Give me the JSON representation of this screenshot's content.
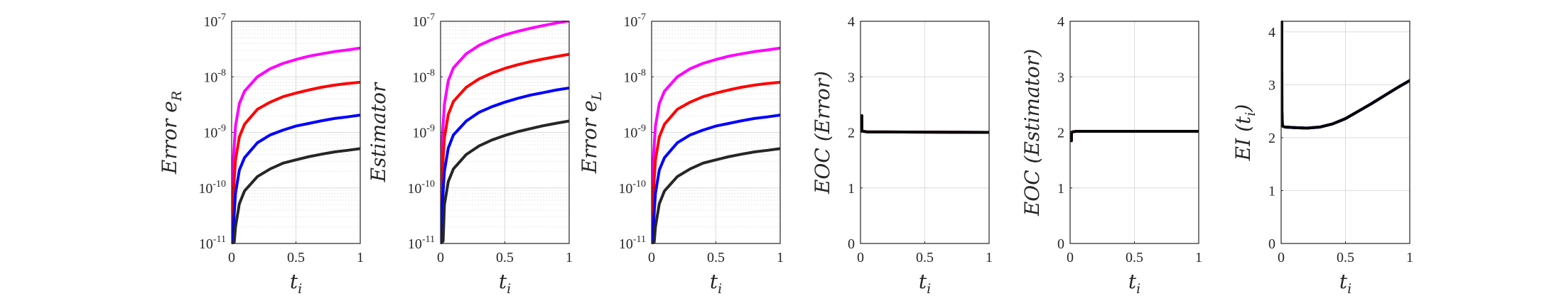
{
  "chart_data": [
    {
      "type": "line",
      "yscale": "log",
      "xlabel": {
        "base": "t",
        "sub": "i"
      },
      "ylabel": {
        "text": "Error ",
        "sub_base": "e",
        "sub": "R"
      },
      "xlim": [
        0,
        1
      ],
      "ylim": [
        1e-11,
        1e-07
      ],
      "xticks": [
        "0",
        "0.5",
        "1"
      ],
      "yticks": [
        {
          "base": "10",
          "exp": "-11"
        },
        {
          "base": "10",
          "exp": "-10"
        },
        {
          "base": "10",
          "exp": "-9"
        },
        {
          "base": "10",
          "exp": "-8"
        },
        {
          "base": "10",
          "exp": "-7"
        }
      ],
      "grid": true,
      "series": [
        {
          "color": "#ff00ff",
          "x": [
            0.0,
            0.01,
            0.03,
            0.06,
            0.1,
            0.2,
            0.3,
            0.4,
            0.5,
            0.6,
            0.7,
            0.8,
            0.9,
            1.0
          ],
          "y": [
            1e-11,
            2.5e-10,
            1.3e-09,
            3.3e-09,
            5.5e-09,
            1e-08,
            1.4e-08,
            1.75e-08,
            2.05e-08,
            2.35e-08,
            2.6e-08,
            2.85e-08,
            3.05e-08,
            3.3e-08
          ]
        },
        {
          "color": "#ff0000",
          "x": [
            0.0,
            0.01,
            0.03,
            0.06,
            0.1,
            0.2,
            0.3,
            0.4,
            0.5,
            0.6,
            0.7,
            0.8,
            0.9,
            1.0
          ],
          "y": [
            1e-11,
            6e-11,
            3.2e-10,
            8.3e-10,
            1.4e-09,
            2.6e-09,
            3.5e-09,
            4.4e-09,
            5.1e-09,
            5.8e-09,
            6.5e-09,
            7.1e-09,
            7.6e-09,
            8e-09
          ]
        },
        {
          "color": "#0000ff",
          "x": [
            0.0,
            0.01,
            0.03,
            0.06,
            0.1,
            0.2,
            0.3,
            0.4,
            0.5,
            0.6,
            0.7,
            0.8,
            0.9,
            1.0
          ],
          "y": [
            1e-11,
            1.5e-11,
            8e-11,
            2.1e-10,
            3.5e-10,
            6.5e-10,
            9e-10,
            1.1e-09,
            1.3e-09,
            1.45e-09,
            1.62e-09,
            1.78e-09,
            1.9e-09,
            2.05e-09
          ]
        },
        {
          "color": "#262626",
          "x": [
            0.0,
            0.02,
            0.03,
            0.06,
            0.1,
            0.2,
            0.3,
            0.4,
            0.5,
            0.6,
            0.7,
            0.8,
            0.9,
            1.0
          ],
          "y": [
            1e-11,
            1.05e-11,
            2e-11,
            5.2e-11,
            8.8e-11,
            1.6e-10,
            2.2e-10,
            2.8e-10,
            3.2e-10,
            3.65e-10,
            4.05e-10,
            4.45e-10,
            4.75e-10,
            5.1e-10
          ]
        }
      ]
    },
    {
      "type": "line",
      "yscale": "log",
      "xlabel": {
        "base": "t",
        "sub": "i"
      },
      "ylabel": {
        "text": "Estimator"
      },
      "xlim": [
        0,
        1
      ],
      "ylim": [
        1e-11,
        1e-07
      ],
      "xticks": [
        "0",
        "0.5",
        "1"
      ],
      "yticks": [
        {
          "base": "10",
          "exp": "-11"
        },
        {
          "base": "10",
          "exp": "-10"
        },
        {
          "base": "10",
          "exp": "-9"
        },
        {
          "base": "10",
          "exp": "-8"
        },
        {
          "base": "10",
          "exp": "-7"
        }
      ],
      "grid": true,
      "series": [
        {
          "color": "#ff00ff",
          "x": [
            0.0,
            0.01,
            0.03,
            0.06,
            0.1,
            0.2,
            0.3,
            0.4,
            0.5,
            0.6,
            0.7,
            0.8,
            0.9,
            1.0
          ],
          "y": [
            1e-11,
            6e-10,
            3.2e-09,
            8.5e-09,
            1.45e-08,
            2.6e-08,
            3.7e-08,
            4.7e-08,
            5.7e-08,
            6.6e-08,
            7.5e-08,
            8.4e-08,
            9.3e-08,
            1.02e-07
          ]
        },
        {
          "color": "#ff0000",
          "x": [
            0.0,
            0.01,
            0.03,
            0.06,
            0.1,
            0.2,
            0.3,
            0.4,
            0.5,
            0.6,
            0.7,
            0.8,
            0.9,
            1.0
          ],
          "y": [
            1e-11,
            1.5e-10,
            8e-10,
            2.1e-09,
            3.6e-09,
            6.5e-09,
            9.2e-09,
            1.17e-08,
            1.42e-08,
            1.65e-08,
            1.88e-08,
            2.1e-08,
            2.32e-08,
            2.55e-08
          ]
        },
        {
          "color": "#0000ff",
          "x": [
            0.0,
            0.01,
            0.03,
            0.06,
            0.1,
            0.2,
            0.3,
            0.4,
            0.5,
            0.6,
            0.7,
            0.8,
            0.9,
            1.0
          ],
          "y": [
            1e-11,
            3.7e-11,
            2e-10,
            5.2e-10,
            9e-10,
            1.6e-09,
            2.3e-09,
            2.9e-09,
            3.5e-09,
            4.1e-09,
            4.7e-09,
            5.2e-09,
            5.8e-09,
            6.3e-09
          ]
        },
        {
          "color": "#262626",
          "x": [
            0.0,
            0.02,
            0.03,
            0.06,
            0.1,
            0.2,
            0.3,
            0.4,
            0.5,
            0.6,
            0.7,
            0.8,
            0.9,
            1.0
          ],
          "y": [
            1e-11,
            1.1e-11,
            5e-11,
            1.3e-10,
            2.2e-10,
            4e-10,
            5.7e-10,
            7.3e-10,
            8.8e-10,
            1.03e-09,
            1.17e-09,
            1.32e-09,
            1.46e-09,
            1.6e-09
          ]
        }
      ]
    },
    {
      "type": "line",
      "yscale": "log",
      "xlabel": {
        "base": "t",
        "sub": "i"
      },
      "ylabel": {
        "text": "Error ",
        "sub_base": "e",
        "sub": "L"
      },
      "xlim": [
        0,
        1
      ],
      "ylim": [
        1e-11,
        1e-07
      ],
      "xticks": [
        "0",
        "0.5",
        "1"
      ],
      "yticks": [
        {
          "base": "10",
          "exp": "-11"
        },
        {
          "base": "10",
          "exp": "-10"
        },
        {
          "base": "10",
          "exp": "-9"
        },
        {
          "base": "10",
          "exp": "-8"
        },
        {
          "base": "10",
          "exp": "-7"
        }
      ],
      "grid": true,
      "series": [
        {
          "color": "#ff00ff",
          "x": [
            0.0,
            0.01,
            0.03,
            0.06,
            0.1,
            0.2,
            0.3,
            0.4,
            0.5,
            0.6,
            0.7,
            0.8,
            0.9,
            1.0
          ],
          "y": [
            1e-11,
            2.5e-10,
            1.3e-09,
            3.3e-09,
            5.5e-09,
            1e-08,
            1.4e-08,
            1.75e-08,
            2.05e-08,
            2.35e-08,
            2.6e-08,
            2.85e-08,
            3.05e-08,
            3.3e-08
          ]
        },
        {
          "color": "#ff0000",
          "x": [
            0.0,
            0.01,
            0.03,
            0.06,
            0.1,
            0.2,
            0.3,
            0.4,
            0.5,
            0.6,
            0.7,
            0.8,
            0.9,
            1.0
          ],
          "y": [
            1e-11,
            6e-11,
            3.2e-10,
            8.3e-10,
            1.4e-09,
            2.6e-09,
            3.5e-09,
            4.4e-09,
            5.1e-09,
            5.8e-09,
            6.5e-09,
            7.1e-09,
            7.6e-09,
            8e-09
          ]
        },
        {
          "color": "#0000ff",
          "x": [
            0.0,
            0.01,
            0.03,
            0.06,
            0.1,
            0.2,
            0.3,
            0.4,
            0.5,
            0.6,
            0.7,
            0.8,
            0.9,
            1.0
          ],
          "y": [
            1e-11,
            1.5e-11,
            8e-11,
            2.1e-10,
            3.5e-10,
            6.5e-10,
            9e-10,
            1.1e-09,
            1.3e-09,
            1.45e-09,
            1.62e-09,
            1.78e-09,
            1.9e-09,
            2.05e-09
          ]
        },
        {
          "color": "#262626",
          "x": [
            0.0,
            0.02,
            0.03,
            0.06,
            0.1,
            0.2,
            0.3,
            0.4,
            0.5,
            0.6,
            0.7,
            0.8,
            0.9,
            1.0
          ],
          "y": [
            1e-11,
            1.05e-11,
            2e-11,
            5.2e-11,
            8.8e-11,
            1.6e-10,
            2.2e-10,
            2.8e-10,
            3.2e-10,
            3.65e-10,
            4.05e-10,
            4.45e-10,
            4.75e-10,
            5.1e-10
          ]
        }
      ]
    },
    {
      "type": "line",
      "yscale": "linear",
      "xlabel": {
        "base": "t",
        "sub": "i"
      },
      "ylabel": {
        "text": "EOC (Error)"
      },
      "xlim": [
        0,
        1
      ],
      "ylim": [
        0,
        4
      ],
      "xticks": [
        "0",
        "0.5",
        "1"
      ],
      "yticks": [
        "0",
        "1",
        "2",
        "3",
        "4"
      ],
      "grid": true,
      "series": [
        {
          "color": "#0000ff",
          "x": [
            0.01,
            0.011,
            0.02,
            0.05,
            1.0
          ],
          "y": [
            2.3,
            2.03,
            2.02,
            2.01,
            2.0
          ]
        },
        {
          "color": "#ff0000",
          "x": [
            0.01,
            0.011,
            0.02,
            0.05,
            1.0
          ],
          "y": [
            2.3,
            2.03,
            2.02,
            2.01,
            2.0
          ]
        },
        {
          "color": "#000000",
          "x": [
            0.01,
            0.011,
            0.02,
            0.05,
            1.0
          ],
          "y": [
            2.3,
            2.03,
            2.02,
            2.01,
            2.0
          ]
        }
      ]
    },
    {
      "type": "line",
      "yscale": "linear",
      "xlabel": {
        "base": "t",
        "sub": "i"
      },
      "ylabel": {
        "text": "EOC (Estimator)"
      },
      "xlim": [
        0,
        1
      ],
      "ylim": [
        0,
        4
      ],
      "xticks": [
        "0",
        "0.5",
        "1"
      ],
      "yticks": [
        "0",
        "1",
        "2",
        "3",
        "4"
      ],
      "grid": true,
      "series": [
        {
          "color": "#0000ff",
          "x": [
            0.01,
            0.011,
            0.02,
            0.05,
            1.0
          ],
          "y": [
            1.85,
            2.0,
            2.01,
            2.02,
            2.02
          ]
        },
        {
          "color": "#ff0000",
          "x": [
            0.01,
            0.011,
            0.02,
            0.05,
            1.0
          ],
          "y": [
            1.85,
            2.0,
            2.01,
            2.02,
            2.02
          ]
        },
        {
          "color": "#000000",
          "x": [
            0.01,
            0.011,
            0.02,
            0.05,
            1.0
          ],
          "y": [
            1.85,
            2.0,
            2.01,
            2.02,
            2.02
          ]
        }
      ]
    },
    {
      "type": "line",
      "yscale": "linear",
      "xlabel": {
        "base": "t",
        "sub": "i"
      },
      "ylabel": {
        "text": "EI (",
        "sub_base": "t",
        "sub": "i",
        "suffix": ")"
      },
      "xlim": [
        0,
        1
      ],
      "ylim": [
        0,
        4.2
      ],
      "xticks": [
        "0",
        "0.5",
        "1"
      ],
      "yticks": [
        "0",
        "1",
        "2",
        "3",
        "4"
      ],
      "grid": true,
      "series": [
        {
          "color": "#ff00ff",
          "x": [
            0.005,
            0.006,
            0.01,
            0.03,
            0.1,
            0.2,
            0.3,
            0.4,
            0.5,
            0.6,
            0.7,
            0.8,
            0.9,
            1.0
          ],
          "y": [
            4.2,
            2.5,
            2.22,
            2.2,
            2.19,
            2.18,
            2.2,
            2.26,
            2.36,
            2.5,
            2.64,
            2.79,
            2.94,
            3.08
          ]
        },
        {
          "color": "#0000ff",
          "x": [
            0.005,
            0.006,
            0.01,
            0.03,
            0.1,
            0.2,
            0.3,
            0.4,
            0.5,
            0.6,
            0.7,
            0.8,
            0.9,
            1.0
          ],
          "y": [
            4.2,
            2.5,
            2.22,
            2.2,
            2.19,
            2.18,
            2.2,
            2.26,
            2.36,
            2.5,
            2.64,
            2.79,
            2.94,
            3.08
          ]
        },
        {
          "color": "#000000",
          "x": [
            0.005,
            0.006,
            0.01,
            0.03,
            0.1,
            0.2,
            0.3,
            0.4,
            0.5,
            0.6,
            0.7,
            0.8,
            0.9,
            1.0
          ],
          "y": [
            4.2,
            2.5,
            2.22,
            2.2,
            2.19,
            2.18,
            2.2,
            2.26,
            2.36,
            2.5,
            2.64,
            2.79,
            2.94,
            3.08
          ]
        }
      ]
    }
  ]
}
